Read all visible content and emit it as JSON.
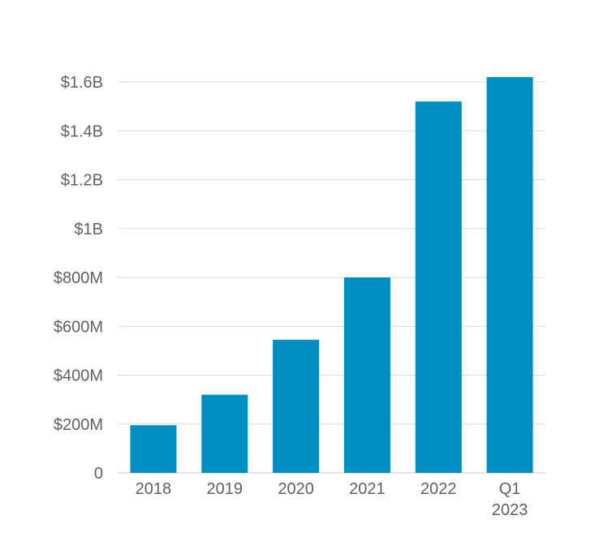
{
  "chart_data": {
    "type": "bar",
    "categories": [
      [
        "2018"
      ],
      [
        "2019"
      ],
      [
        "2020"
      ],
      [
        "2021"
      ],
      [
        "2022"
      ],
      [
        "Q1",
        "2023"
      ]
    ],
    "values": [
      195000000,
      320000000,
      545000000,
      800000000,
      1520000000,
      1620000000
    ],
    "ylim": [
      0,
      1600000000
    ],
    "yticks": [
      {
        "value": 0,
        "label": "0"
      },
      {
        "value": 200000000,
        "label": "$200M"
      },
      {
        "value": 400000000,
        "label": "$400M"
      },
      {
        "value": 600000000,
        "label": "$600M"
      },
      {
        "value": 800000000,
        "label": "$800M"
      },
      {
        "value": 1000000000,
        "label": "$1B"
      },
      {
        "value": 1200000000,
        "label": "$1.2B"
      },
      {
        "value": 1400000000,
        "label": "$1.4B"
      },
      {
        "value": 1600000000,
        "label": "$1.6B"
      }
    ],
    "grid": true,
    "legend": "none",
    "bar_color": "#008fc0"
  }
}
